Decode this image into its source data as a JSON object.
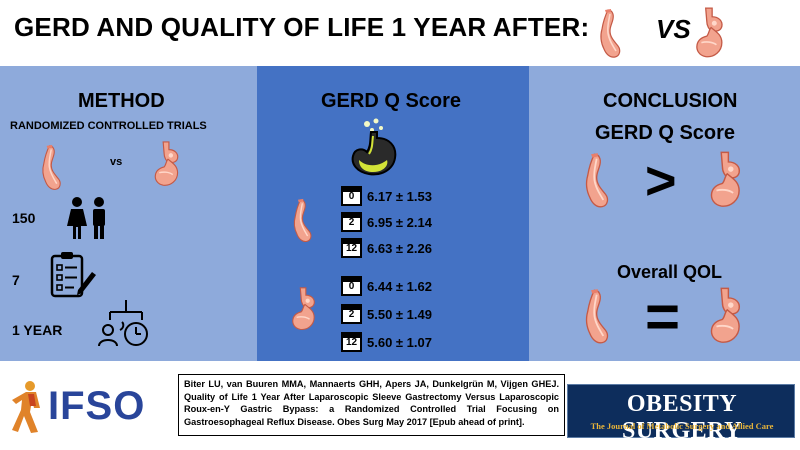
{
  "title": {
    "text": "GERD AND QUALITY OF LIFE 1 YEAR AFTER:",
    "vs": "VS"
  },
  "method": {
    "heading": "METHOD",
    "subheading": "RANDOMIZED CONTROLLED TRIALS",
    "vs": "vs",
    "participants": "150",
    "items": "7",
    "duration": "1 YEAR"
  },
  "gerdq": {
    "heading": "GERD Q Score",
    "sleeve": [
      {
        "month": "0",
        "value": "6.17 ± 1.53"
      },
      {
        "month": "2",
        "value": "6.95 ± 2.14"
      },
      {
        "month": "12",
        "value": "6.63 ± 2.26"
      }
    ],
    "bypass": [
      {
        "month": "0",
        "value": "6.44 ± 1.62"
      },
      {
        "month": "2",
        "value": "5.50 ± 1.49"
      },
      {
        "month": "12",
        "value": "5.60 ± 1.07"
      }
    ]
  },
  "conclusion": {
    "heading": "CONCLUSION",
    "gerdq_label": "GERD Q Score",
    "greater_symbol": ">",
    "qol_label": "Overall QOL",
    "equal_symbol": "="
  },
  "footer": {
    "logo_text": "IFSO",
    "citation": "Biter LU, van Buuren MMA, Mannaerts GHH, Apers JA, Dunkelgrün M, Vijgen GHEJ. Quality of Life 1 Year After Laparoscopic Sleeve Gastrectomy Versus Laparoscopic Roux-en-Y Gastric Bypass: a Randomized Controlled Trial Focusing on Gastroesophageal Reflux Disease. Obes Surg May 2017 [Epub ahead of print].",
    "journal_name": "OBESITY SURGERY",
    "journal_subtitle": "The Journal of Metabolic Surgery and Allied Care"
  },
  "colors": {
    "panel_light": "#8eaadb",
    "panel_dark": "#4472c4",
    "organ_pink": "#f2a38e",
    "ifso_blue": "#29459a",
    "journal_navy": "#0d2d5c"
  }
}
